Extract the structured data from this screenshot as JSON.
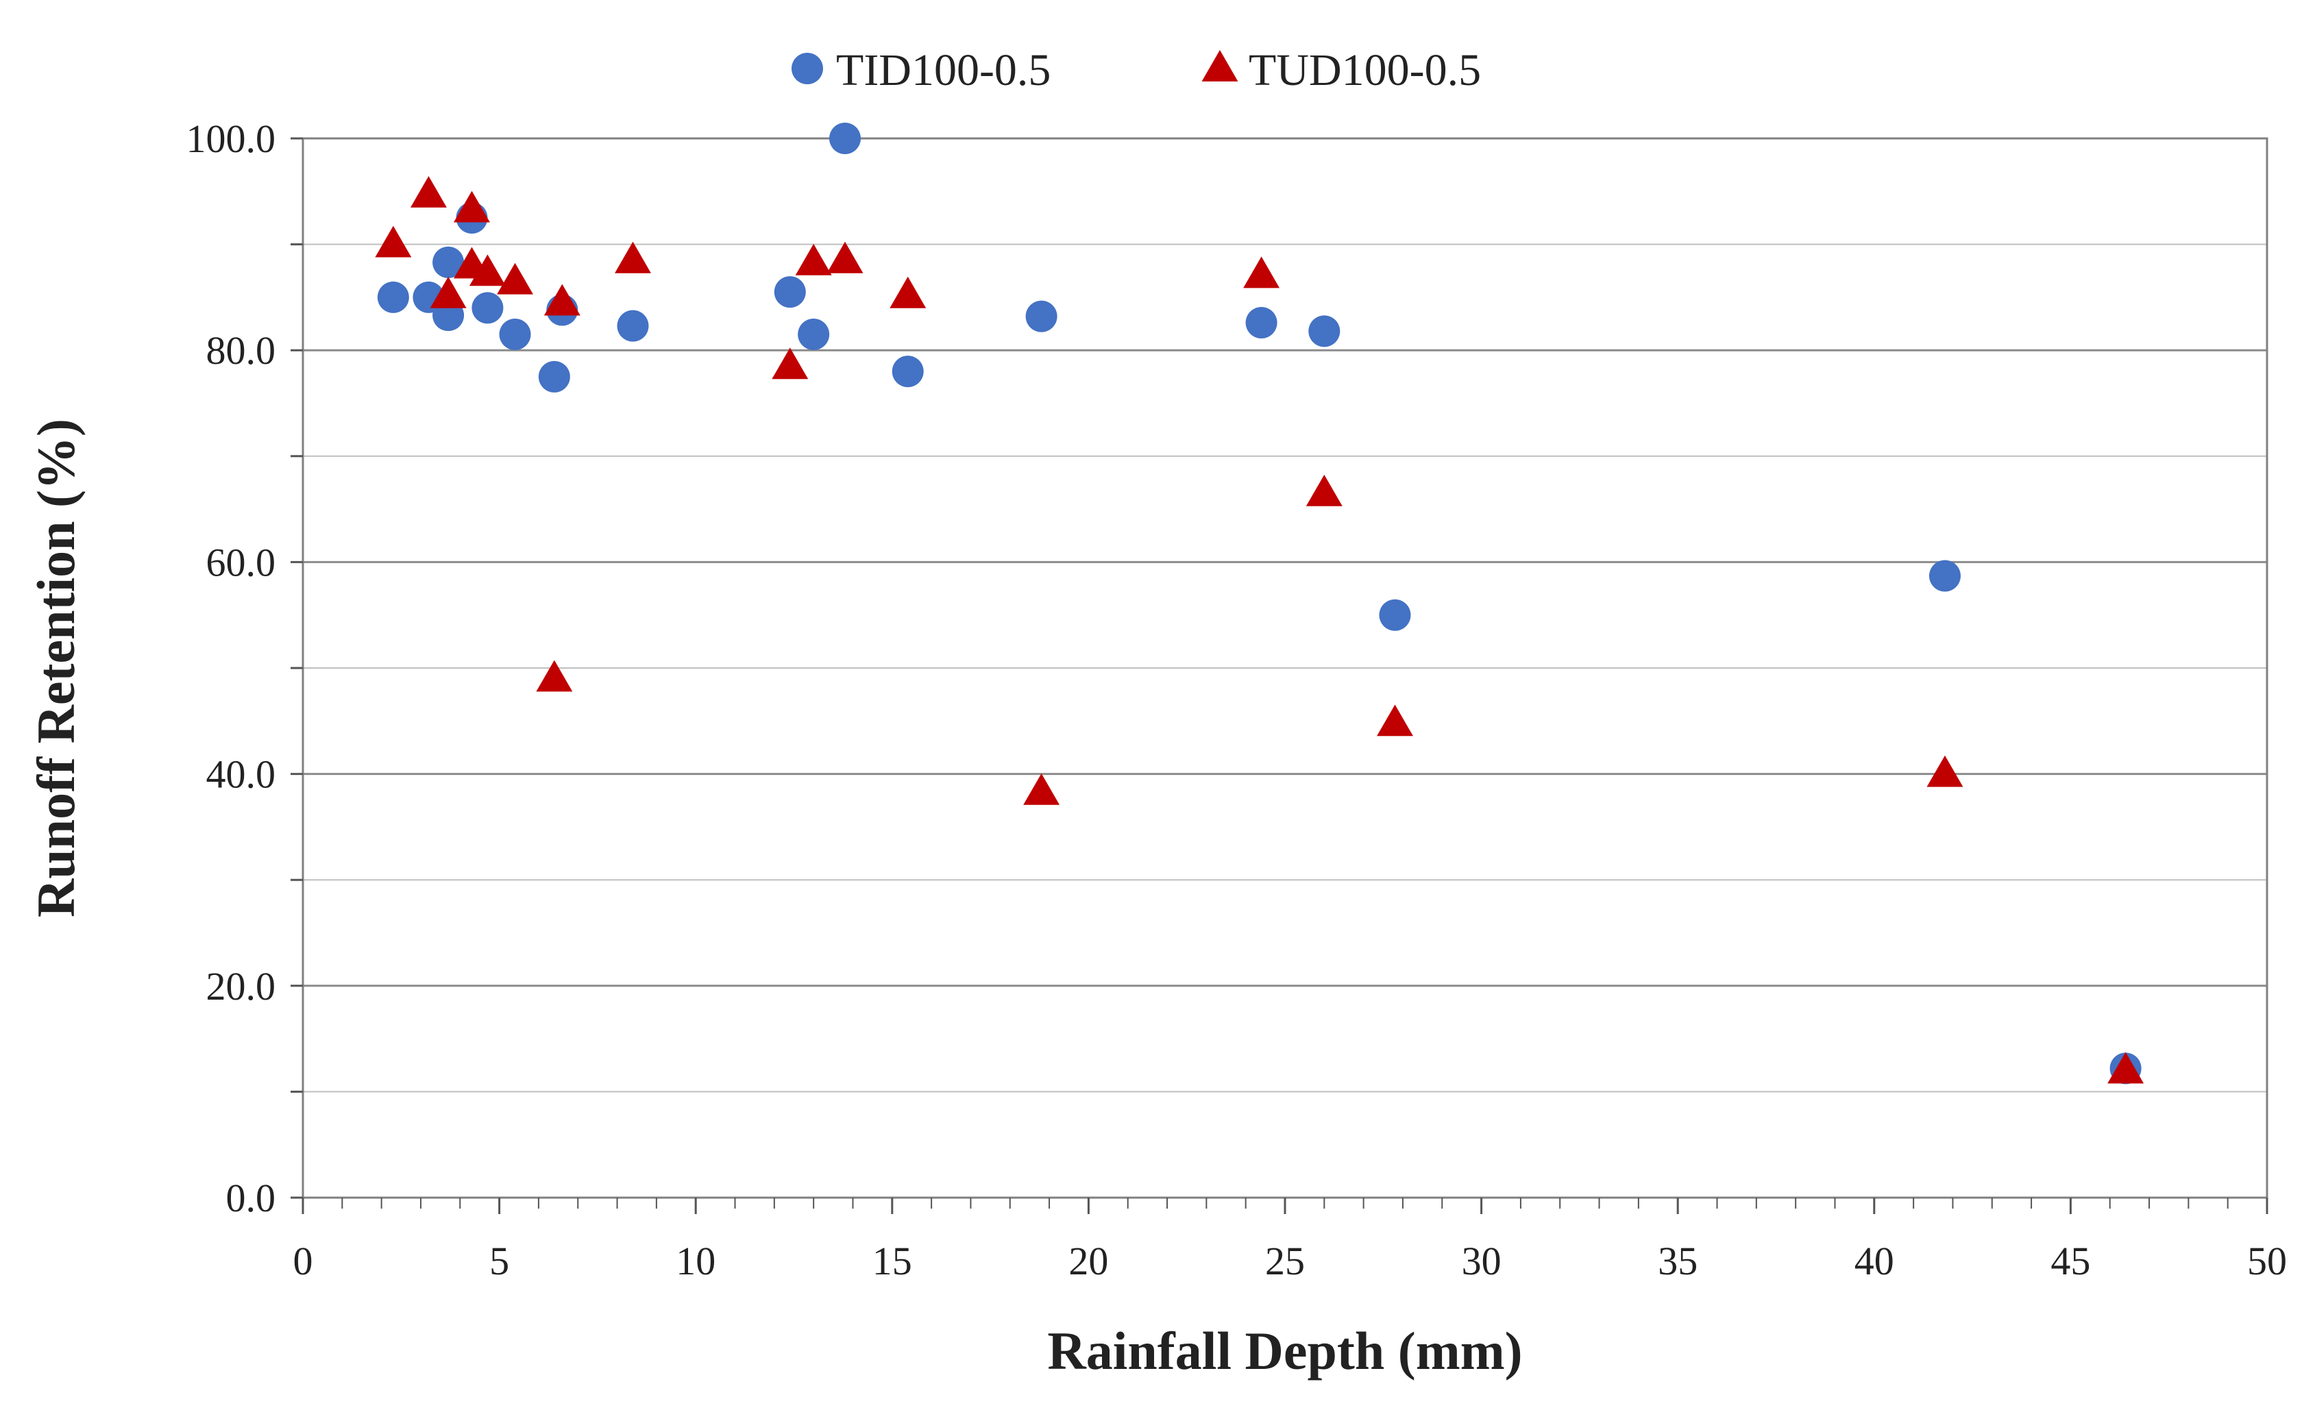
{
  "chart_data": {
    "type": "scatter",
    "title": "",
    "xlabel": "Rainfall Depth (mm)",
    "ylabel": "Runoff Retention (%)",
    "xlim": [
      0,
      50
    ],
    "ylim": [
      0,
      100
    ],
    "x_ticks": [
      0,
      5,
      10,
      15,
      20,
      25,
      30,
      35,
      40,
      45,
      50
    ],
    "y_ticks": [
      0,
      20,
      40,
      60,
      80,
      100
    ],
    "x_tick_labels": [
      "0",
      "5",
      "10",
      "15",
      "20",
      "25",
      "30",
      "35",
      "40",
      "45",
      "50"
    ],
    "y_tick_labels": [
      "0.0",
      "20.0",
      "40.0",
      "60.0",
      "80.0",
      "100.0"
    ],
    "grid": "horizontal",
    "legend_position": "top-center",
    "series": [
      {
        "name": "TID100-0.5",
        "marker": "circle",
        "color": "#4472C4",
        "points": [
          {
            "x": 2.3,
            "y": 85.0
          },
          {
            "x": 3.2,
            "y": 85.0
          },
          {
            "x": 3.7,
            "y": 88.3
          },
          {
            "x": 3.7,
            "y": 83.3
          },
          {
            "x": 4.3,
            "y": 92.5
          },
          {
            "x": 4.7,
            "y": 84.0
          },
          {
            "x": 5.4,
            "y": 81.5
          },
          {
            "x": 6.4,
            "y": 77.5
          },
          {
            "x": 6.6,
            "y": 83.8
          },
          {
            "x": 8.4,
            "y": 82.3
          },
          {
            "x": 12.4,
            "y": 85.5
          },
          {
            "x": 13.0,
            "y": 81.5
          },
          {
            "x": 13.8,
            "y": 100.0
          },
          {
            "x": 15.4,
            "y": 78.0
          },
          {
            "x": 18.8,
            "y": 83.2
          },
          {
            "x": 24.4,
            "y": 82.6
          },
          {
            "x": 26.0,
            "y": 81.8
          },
          {
            "x": 27.8,
            "y": 55.0
          },
          {
            "x": 41.8,
            "y": 58.7
          },
          {
            "x": 46.4,
            "y": 12.2
          }
        ]
      },
      {
        "name": "TUD100-0.5",
        "marker": "triangle",
        "color": "#C00000",
        "points": [
          {
            "x": 2.3,
            "y": 90.0
          },
          {
            "x": 3.2,
            "y": 94.7
          },
          {
            "x": 3.7,
            "y": 85.2
          },
          {
            "x": 4.3,
            "y": 93.3
          },
          {
            "x": 4.3,
            "y": 88.0
          },
          {
            "x": 4.7,
            "y": 87.3
          },
          {
            "x": 5.4,
            "y": 86.5
          },
          {
            "x": 6.4,
            "y": 49.0
          },
          {
            "x": 6.6,
            "y": 84.5
          },
          {
            "x": 8.4,
            "y": 88.5
          },
          {
            "x": 12.4,
            "y": 78.5
          },
          {
            "x": 13.0,
            "y": 88.3
          },
          {
            "x": 13.8,
            "y": 88.5
          },
          {
            "x": 15.4,
            "y": 85.2
          },
          {
            "x": 18.8,
            "y": 38.3
          },
          {
            "x": 24.4,
            "y": 87.1
          },
          {
            "x": 26.0,
            "y": 66.5
          },
          {
            "x": 27.8,
            "y": 44.8
          },
          {
            "x": 41.8,
            "y": 40.0
          },
          {
            "x": 46.4,
            "y": 12.0
          }
        ]
      }
    ]
  }
}
